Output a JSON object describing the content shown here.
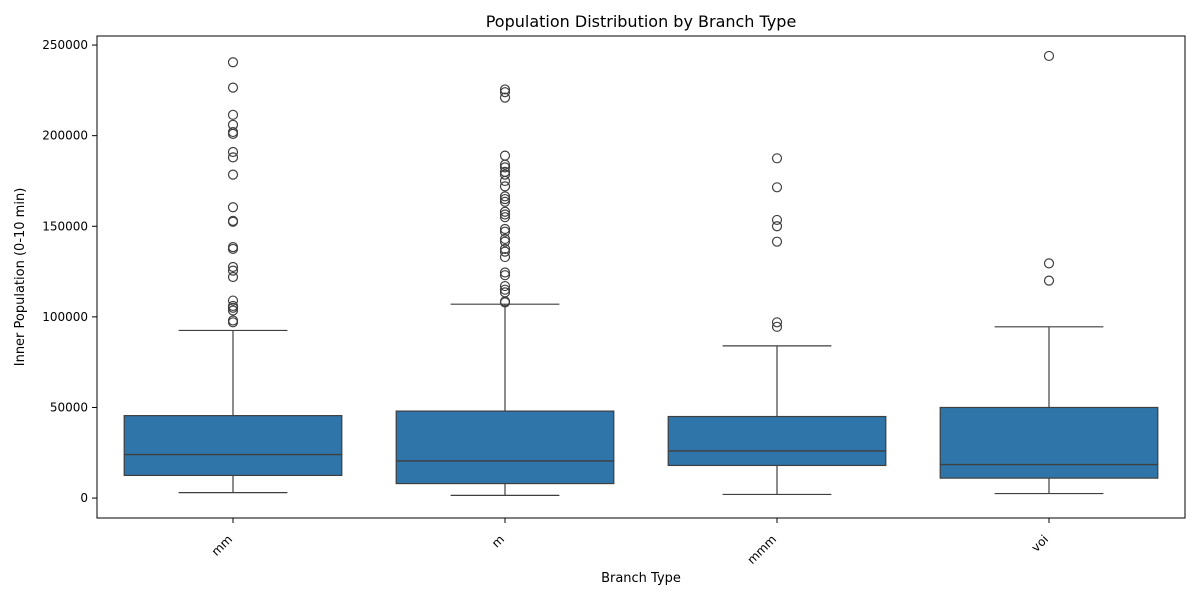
{
  "chart_data": {
    "type": "box",
    "title": "Population Distribution by Branch Type",
    "xlabel": "Branch Type",
    "ylabel": "Inner Population (0-10 min)",
    "ylim": [
      -11000,
      255000
    ],
    "yticks": [
      0,
      50000,
      100000,
      150000,
      200000,
      250000
    ],
    "tick_rotation_deg": -45,
    "grid": false,
    "legend": "none",
    "box_color": "#2f75a9",
    "line_color": "#3f3f3f",
    "categories": [
      "mm",
      "m",
      "mmm",
      "voi"
    ],
    "boxes": [
      {
        "label": "mm",
        "whisker_low": 3000,
        "q1": 12500,
        "median": 24000,
        "q3": 45500,
        "whisker_high": 92500,
        "outliers": [
          97000,
          98000,
          103500,
          105000,
          106000,
          109000,
          122000,
          125500,
          127500,
          137500,
          138500,
          152500,
          153000,
          160500,
          178500,
          188000,
          191000,
          201000,
          202000,
          206000,
          211500,
          226500,
          240500
        ]
      },
      {
        "label": "m",
        "whisker_low": 1500,
        "q1": 8000,
        "median": 20500,
        "q3": 48000,
        "whisker_high": 107000,
        "outliers": [
          108000,
          108500,
          113500,
          115000,
          117000,
          123000,
          124500,
          133000,
          136000,
          137500,
          141500,
          143000,
          147000,
          148500,
          155000,
          156500,
          158000,
          163500,
          165000,
          166500,
          172000,
          175000,
          178500,
          180000,
          182500,
          184000,
          189000,
          221000,
          224000,
          225500
        ]
      },
      {
        "label": "mmm",
        "whisker_low": 2000,
        "q1": 18000,
        "median": 26000,
        "q3": 45000,
        "whisker_high": 84000,
        "outliers": [
          94500,
          97000,
          141500,
          150000,
          153500,
          171500,
          187500
        ]
      },
      {
        "label": "voi",
        "whisker_low": 2500,
        "q1": 11000,
        "median": 18500,
        "q3": 50000,
        "whisker_high": 94500,
        "outliers": [
          120000,
          129500,
          244000
        ]
      }
    ]
  }
}
